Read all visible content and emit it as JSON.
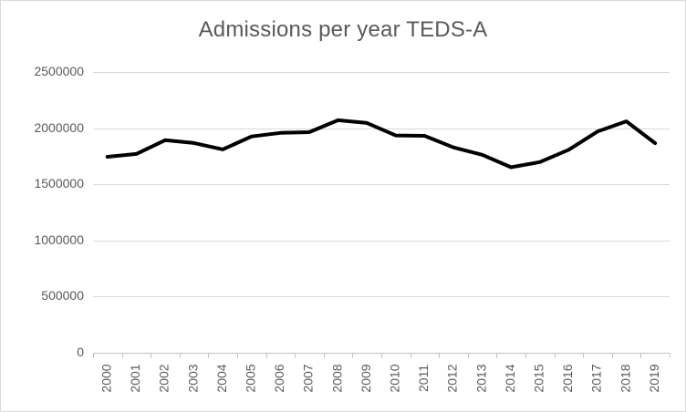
{
  "chart_data": {
    "type": "line",
    "title": "Admissions per year TEDS-A",
    "xlabel": "",
    "ylabel": "",
    "ylim": [
      0,
      2500000
    ],
    "y_ticks": [
      "0",
      "500000",
      "1000000",
      "1500000",
      "2000000",
      "2500000"
    ],
    "y_tick_values": [
      0,
      500000,
      1000000,
      1500000,
      2000000,
      2500000
    ],
    "categories": [
      "2000",
      "2001",
      "2002",
      "2003",
      "2004",
      "2005",
      "2006",
      "2007",
      "2008",
      "2009",
      "2010",
      "2011",
      "2012",
      "2013",
      "2014",
      "2015",
      "2016",
      "2017",
      "2018",
      "2019"
    ],
    "series": [
      {
        "values": [
          1745000,
          1770000,
          1893000,
          1868000,
          1811000,
          1926000,
          1958000,
          1964000,
          2071000,
          2046000,
          1935000,
          1932000,
          1829000,
          1763000,
          1652000,
          1698000,
          1808000,
          1970000,
          2061000,
          1866000
        ],
        "color": "#000000"
      }
    ],
    "grid": true,
    "legend": "none"
  }
}
